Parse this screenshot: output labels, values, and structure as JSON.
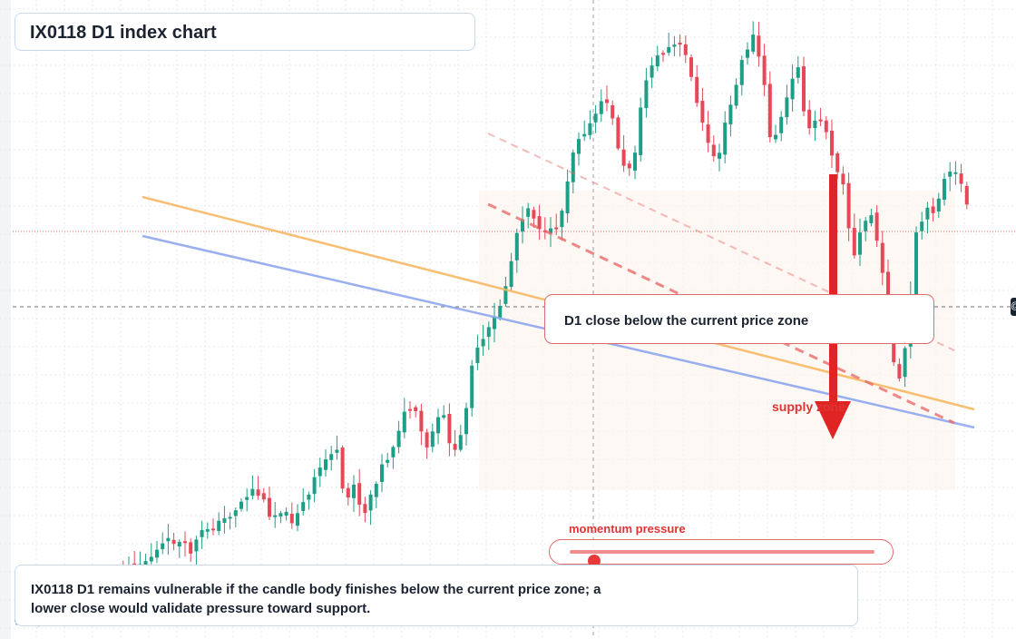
{
  "title": "IX0118 D1 index chart",
  "callout": {
    "text": "D1 close below the current price zone"
  },
  "zone_label": "supply zone",
  "momentum": {
    "label": "momentum pressure",
    "level": 0.08
  },
  "summary": "IX0118 D1 remains vulnerable if the candle body finishes below the current price zone; a lower close would validate pressure toward support.",
  "colors": {
    "bull": "#1e9e86",
    "bear": "#e64857",
    "trend_orange": "#f7b55c",
    "trend_blue": "#8ea7ee",
    "channel": "#e86b6b",
    "arrow": "#e02424"
  },
  "icons": {
    "edge": "price-tag-icon"
  },
  "chart_data": {
    "type": "candlestick",
    "timeframe": "D1",
    "symbol": "IX0118",
    "candles_count": 170,
    "grid": true,
    "crosshair": true,
    "current_price_line": true,
    "annotations": [
      "orange trendline",
      "blue trendline",
      "dashed channel",
      "bearish arrow into supply zone"
    ]
  }
}
